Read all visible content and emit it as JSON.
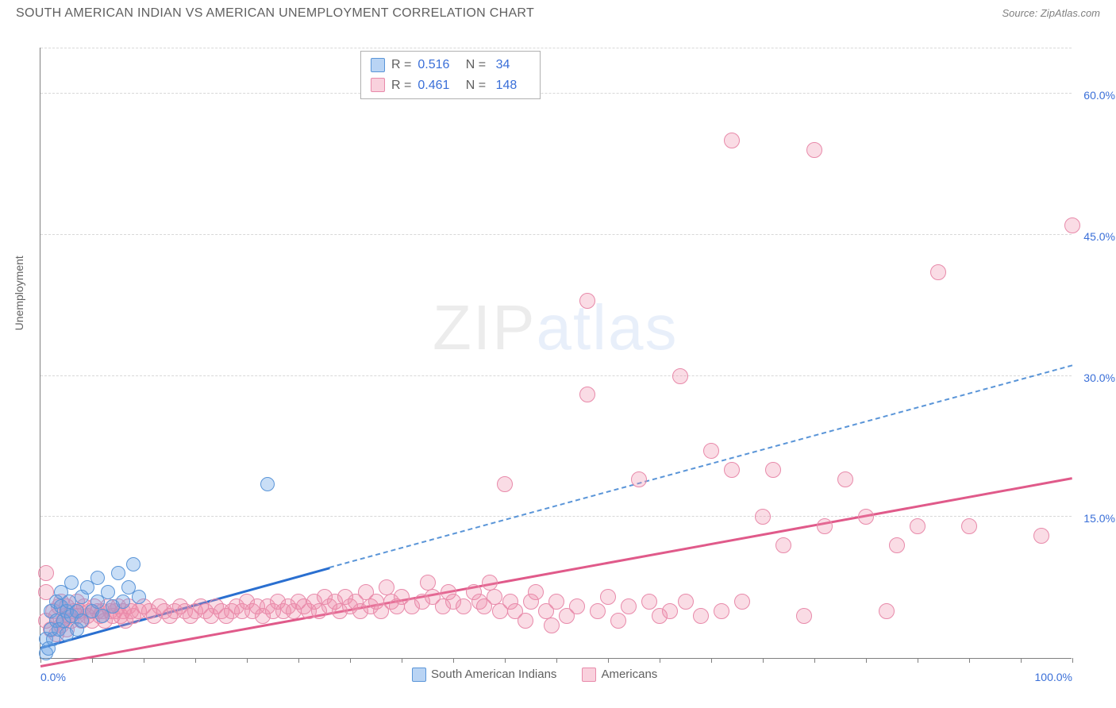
{
  "header": {
    "title": "SOUTH AMERICAN INDIAN VS AMERICAN UNEMPLOYMENT CORRELATION CHART",
    "source": "Source: ZipAtlas.com"
  },
  "axes": {
    "y_label": "Unemployment",
    "x_min": 0,
    "x_max": 100,
    "y_min": 0,
    "y_max": 65,
    "y_ticks": [
      {
        "v": 15,
        "label": "15.0%"
      },
      {
        "v": 30,
        "label": "30.0%"
      },
      {
        "v": 45,
        "label": "45.0%"
      },
      {
        "v": 60,
        "label": "60.0%"
      }
    ],
    "x_ticks": [
      0,
      5,
      10,
      15,
      20,
      25,
      30,
      35,
      40,
      45,
      50,
      55,
      60,
      65,
      70,
      75,
      80,
      85,
      90,
      95,
      100
    ],
    "x_labels": [
      {
        "v": 0,
        "label": "0.0%"
      },
      {
        "v": 100,
        "label": "100.0%"
      }
    ],
    "grid_color": "#d8d8d8",
    "axis_color": "#808080"
  },
  "series": {
    "blue": {
      "name": "South American Indians",
      "marker_size": 18,
      "fill": "rgba(100,160,230,0.35)",
      "stroke": "#5a95d8",
      "R": "0.516",
      "N": "34",
      "trend_solid": {
        "x1": 0,
        "y1": 1.0,
        "x2": 28,
        "y2": 9.5,
        "color": "#2a6fd0"
      },
      "trend_dash": {
        "x1": 28,
        "y1": 9.5,
        "x2": 100,
        "y2": 31.0,
        "color": "#5a95d8"
      },
      "points": [
        [
          0.5,
          0.5
        ],
        [
          0.5,
          2
        ],
        [
          0.8,
          1
        ],
        [
          1,
          3
        ],
        [
          1,
          5
        ],
        [
          1.2,
          2
        ],
        [
          1.5,
          4
        ],
        [
          1.5,
          6
        ],
        [
          1.8,
          3
        ],
        [
          2,
          5.5
        ],
        [
          2,
          7
        ],
        [
          2.2,
          4
        ],
        [
          2.5,
          5
        ],
        [
          2.5,
          2.5
        ],
        [
          2.8,
          6
        ],
        [
          3,
          4.5
        ],
        [
          3,
          8
        ],
        [
          3.5,
          5
        ],
        [
          3.5,
          3
        ],
        [
          4,
          6.5
        ],
        [
          4,
          4
        ],
        [
          4.5,
          7.5
        ],
        [
          5,
          5
        ],
        [
          5.5,
          6
        ],
        [
          5.5,
          8.5
        ],
        [
          6,
          4.5
        ],
        [
          6.5,
          7
        ],
        [
          7,
          5.5
        ],
        [
          7.5,
          9
        ],
        [
          8,
          6
        ],
        [
          8.5,
          7.5
        ],
        [
          9,
          10
        ],
        [
          9.5,
          6.5
        ],
        [
          22,
          18.5
        ]
      ]
    },
    "pink": {
      "name": "Americans",
      "marker_size": 20,
      "fill": "rgba(240,140,170,0.30)",
      "stroke": "#e88aaa",
      "R": "0.461",
      "N": "148",
      "trend_solid": {
        "x1": 0,
        "y1": -1.0,
        "x2": 100,
        "y2": 19.0,
        "color": "#e05a8a"
      },
      "points": [
        [
          0.5,
          7
        ],
        [
          0.5,
          9
        ],
        [
          0.5,
          4
        ],
        [
          1,
          3
        ],
        [
          1.2,
          5
        ],
        [
          1.5,
          2.5
        ],
        [
          1.5,
          4.5
        ],
        [
          1.8,
          5.5
        ],
        [
          2,
          3.5
        ],
        [
          2,
          6
        ],
        [
          2.2,
          4
        ],
        [
          2.5,
          5.5
        ],
        [
          2.5,
          3
        ],
        [
          2.8,
          4.5
        ],
        [
          3,
          4
        ],
        [
          3.2,
          5
        ],
        [
          3.5,
          4.5
        ],
        [
          3.5,
          6
        ],
        [
          3.8,
          5
        ],
        [
          4,
          4
        ],
        [
          4.2,
          5.5
        ],
        [
          4.5,
          4.5
        ],
        [
          4.8,
          5
        ],
        [
          5,
          4
        ],
        [
          5.2,
          5.5
        ],
        [
          5.5,
          5
        ],
        [
          5.8,
          4.5
        ],
        [
          6,
          5
        ],
        [
          6.2,
          4
        ],
        [
          6.5,
          5.5
        ],
        [
          6.8,
          5
        ],
        [
          7,
          4.5
        ],
        [
          7.2,
          5
        ],
        [
          7.5,
          5.5
        ],
        [
          7.8,
          4.5
        ],
        [
          8,
          5
        ],
        [
          8.2,
          4
        ],
        [
          8.5,
          5.5
        ],
        [
          8.8,
          5
        ],
        [
          9,
          4.5
        ],
        [
          9.5,
          5
        ],
        [
          10,
          5.5
        ],
        [
          10.5,
          5
        ],
        [
          11,
          4.5
        ],
        [
          11.5,
          5.5
        ],
        [
          12,
          5
        ],
        [
          12.5,
          4.5
        ],
        [
          13,
          5
        ],
        [
          13.5,
          5.5
        ],
        [
          14,
          5
        ],
        [
          14.5,
          4.5
        ],
        [
          15,
          5
        ],
        [
          15.5,
          5.5
        ],
        [
          16,
          5
        ],
        [
          16.5,
          4.5
        ],
        [
          17,
          5.5
        ],
        [
          17.5,
          5
        ],
        [
          18,
          4.5
        ],
        [
          18.5,
          5
        ],
        [
          19,
          5.5
        ],
        [
          19.5,
          5
        ],
        [
          20,
          6
        ],
        [
          20.5,
          5
        ],
        [
          21,
          5.5
        ],
        [
          21.5,
          4.5
        ],
        [
          22,
          5.5
        ],
        [
          22.5,
          5
        ],
        [
          23,
          6
        ],
        [
          23.5,
          5
        ],
        [
          24,
          5.5
        ],
        [
          24.5,
          5
        ],
        [
          25,
          6
        ],
        [
          25.5,
          5.5
        ],
        [
          26,
          5
        ],
        [
          26.5,
          6
        ],
        [
          27,
          5
        ],
        [
          27.5,
          6.5
        ],
        [
          28,
          5.5
        ],
        [
          28.5,
          6
        ],
        [
          29,
          5
        ],
        [
          29.5,
          6.5
        ],
        [
          30,
          5.5
        ],
        [
          30.5,
          6
        ],
        [
          31,
          5
        ],
        [
          31.5,
          7
        ],
        [
          32,
          5.5
        ],
        [
          32.5,
          6
        ],
        [
          33,
          5
        ],
        [
          33.5,
          7.5
        ],
        [
          34,
          6
        ],
        [
          34.5,
          5.5
        ],
        [
          35,
          6.5
        ],
        [
          36,
          5.5
        ],
        [
          37,
          6
        ],
        [
          37.5,
          8
        ],
        [
          38,
          6.5
        ],
        [
          39,
          5.5
        ],
        [
          39.5,
          7
        ],
        [
          40,
          6
        ],
        [
          41,
          5.5
        ],
        [
          42,
          7
        ],
        [
          42.5,
          6
        ],
        [
          43,
          5.5
        ],
        [
          43.5,
          8
        ],
        [
          44,
          6.5
        ],
        [
          44.5,
          5
        ],
        [
          45,
          18.5
        ],
        [
          45.5,
          6
        ],
        [
          46,
          5
        ],
        [
          47,
          4
        ],
        [
          47.5,
          6
        ],
        [
          48,
          7
        ],
        [
          49,
          5
        ],
        [
          49.5,
          3.5
        ],
        [
          50,
          6
        ],
        [
          51,
          4.5
        ],
        [
          52,
          5.5
        ],
        [
          53,
          28
        ],
        [
          53,
          38
        ],
        [
          54,
          5
        ],
        [
          55,
          6.5
        ],
        [
          56,
          4
        ],
        [
          57,
          5.5
        ],
        [
          58,
          19
        ],
        [
          59,
          6
        ],
        [
          60,
          4.5
        ],
        [
          61,
          5
        ],
        [
          62,
          30
        ],
        [
          62.5,
          6
        ],
        [
          64,
          4.5
        ],
        [
          65,
          22
        ],
        [
          66,
          5
        ],
        [
          67,
          55
        ],
        [
          67,
          20
        ],
        [
          68,
          6
        ],
        [
          70,
          15
        ],
        [
          71,
          20
        ],
        [
          72,
          12
        ],
        [
          74,
          4.5
        ],
        [
          75,
          54
        ],
        [
          76,
          14
        ],
        [
          78,
          19
        ],
        [
          80,
          15
        ],
        [
          82,
          5
        ],
        [
          83,
          12
        ],
        [
          85,
          14
        ],
        [
          87,
          41
        ],
        [
          90,
          14
        ],
        [
          97,
          13
        ],
        [
          100,
          46
        ]
      ]
    }
  },
  "bottom_legend": {
    "items": [
      {
        "color": "blue",
        "label": "South American Indians"
      },
      {
        "color": "pink",
        "label": "Americans"
      }
    ]
  },
  "watermark": {
    "zip": "ZIP",
    "atlas": "atlas"
  }
}
